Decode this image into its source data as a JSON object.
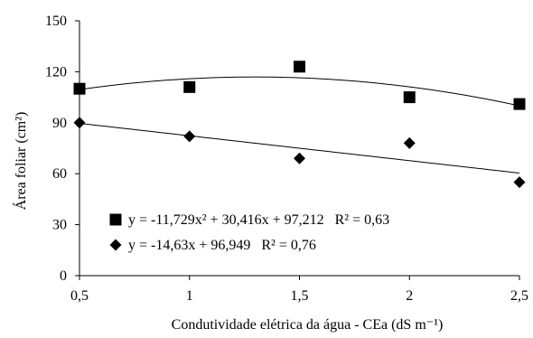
{
  "chart_data": {
    "type": "scatter",
    "xlabel": "Condutividade elétrica da água  - CEa (dS m⁻¹)",
    "ylabel": "Área foliar (cm²)",
    "x_ticks": [
      "0,5",
      "1",
      "1,5",
      "2",
      "2,5"
    ],
    "y_ticks": [
      "0",
      "30",
      "60",
      "90",
      "120",
      "150"
    ],
    "xlim": [
      0.5,
      2.5
    ],
    "ylim": [
      0,
      150
    ],
    "grid": false,
    "legend_position": "bottom-left",
    "series": [
      {
        "marker": "square",
        "x": [
          0.5,
          1,
          1.5,
          2,
          2.5
        ],
        "y": [
          110,
          111,
          123,
          105,
          101
        ],
        "trendline": {
          "type": "quadratic",
          "coefficients": [
            -11.729,
            30.416,
            97.212
          ]
        },
        "legend": "y = -11,729x² + 30,416x + 97,212   R² = 0,63"
      },
      {
        "marker": "diamond",
        "x": [
          0.5,
          1,
          1.5,
          2,
          2.5
        ],
        "y": [
          90,
          82,
          69,
          78,
          55
        ],
        "trendline": {
          "type": "linear",
          "coefficients": [
            -14.63,
            96.949
          ]
        },
        "legend": "y = -14,63x + 96,949   R² = 0,76"
      }
    ],
    "colors": {
      "marker": "#000000",
      "axis": "#000000",
      "line": "#000000"
    }
  }
}
